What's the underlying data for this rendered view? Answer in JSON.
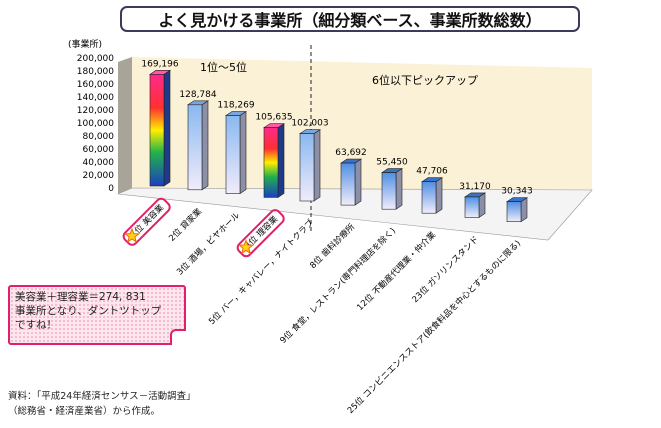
{
  "title": "よく見かける事業所（細分類ベース、事業所数総数）",
  "callout": {
    "line1": "美容業＋理容業＝274, 831",
    "line2": "事業所となり、ダントツトップ",
    "line3": "ですね！"
  },
  "source": {
    "line1": "資料：「平成24年経済センサス－活動調査」",
    "line2": "（総務省・経済産業省）から作成。"
  },
  "colors": {
    "accent": "#e0206a",
    "wall": "#fbf1d6",
    "bar": "#6fa8e8"
  },
  "chart_data": {
    "type": "bar",
    "title": "よく見かける事業所（細分類ベース、事業所数総数）",
    "ylabel": "(事業所)",
    "ylim": [
      0,
      200000
    ],
    "yticks": [
      "0",
      "20,000",
      "40,000",
      "60,000",
      "80,000",
      "100,000",
      "120,000",
      "140,000",
      "160,000",
      "180,000",
      "200,000"
    ],
    "section_labels": [
      "1位～5位",
      "6位以下ピックアップ"
    ],
    "categories": [
      "1位 美容業",
      "2位 貸家業",
      "3位 酒場，ビヤホール",
      "4位 理容業",
      "5位 バー，キャバレー，ナイトクラブ",
      "8位 歯科診療所",
      "9位 食堂，レストラン(専門料理店を除く)",
      "12位 不動産代理業・仲介業",
      "23位 ガソリンスタンド",
      "25位 コンビニエンスストア(飲食料品を中心とするものに限る)"
    ],
    "values": [
      169196,
      128784,
      118269,
      105635,
      102003,
      63692,
      55450,
      47706,
      31170,
      30343
    ],
    "value_labels": [
      "169,196",
      "128,784",
      "118,269",
      "105,635",
      "102,003",
      "63,692",
      "55,450",
      "47,706",
      "31,170",
      "30,343"
    ],
    "highlighted": [
      0,
      3
    ]
  }
}
